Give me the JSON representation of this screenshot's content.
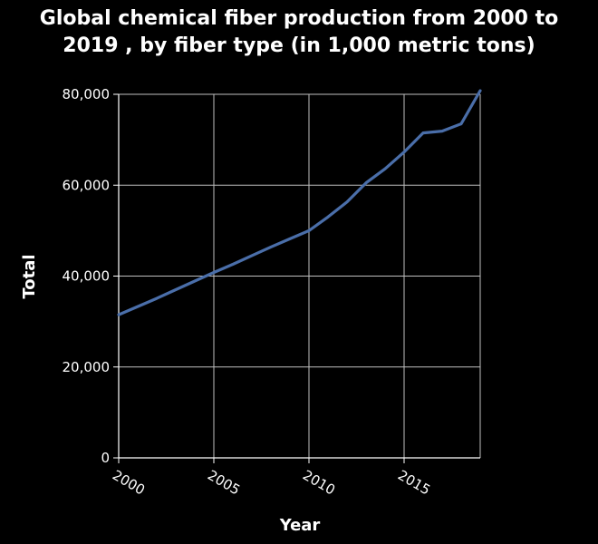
{
  "chart_data": {
    "type": "line",
    "title": "Global chemical fiber production from 2000 to 2019 , by fiber type (in 1,000 metric tons)",
    "xlabel": "Year",
    "ylabel": "Total",
    "x": [
      2000,
      2001,
      2002,
      2003,
      2004,
      2005,
      2006,
      2007,
      2008,
      2009,
      2010,
      2011,
      2012,
      2013,
      2014,
      2015,
      2016,
      2017,
      2018,
      2019
    ],
    "series": [
      {
        "values": [
          31500,
          33300,
          35100,
          37000,
          38900,
          40800,
          42600,
          44500,
          46400,
          48200,
          50000,
          53000,
          56300,
          60500,
          63600,
          67300,
          71500,
          71900,
          73500,
          80800
        ]
      }
    ],
    "xlim": [
      2000,
      2019
    ],
    "ylim": [
      0,
      80000
    ],
    "xticks": [
      2000,
      2005,
      2010,
      2015
    ],
    "yticks": [
      0,
      20000,
      40000,
      60000,
      80000
    ],
    "ytick_labels": [
      "0",
      "20,000",
      "40,000",
      "60,000",
      "80,000"
    ],
    "grid": true,
    "colors": {
      "background": "#000000",
      "line": "#4a6ea9",
      "grid": "#bfbfbf",
      "text": "#ffffff"
    }
  }
}
